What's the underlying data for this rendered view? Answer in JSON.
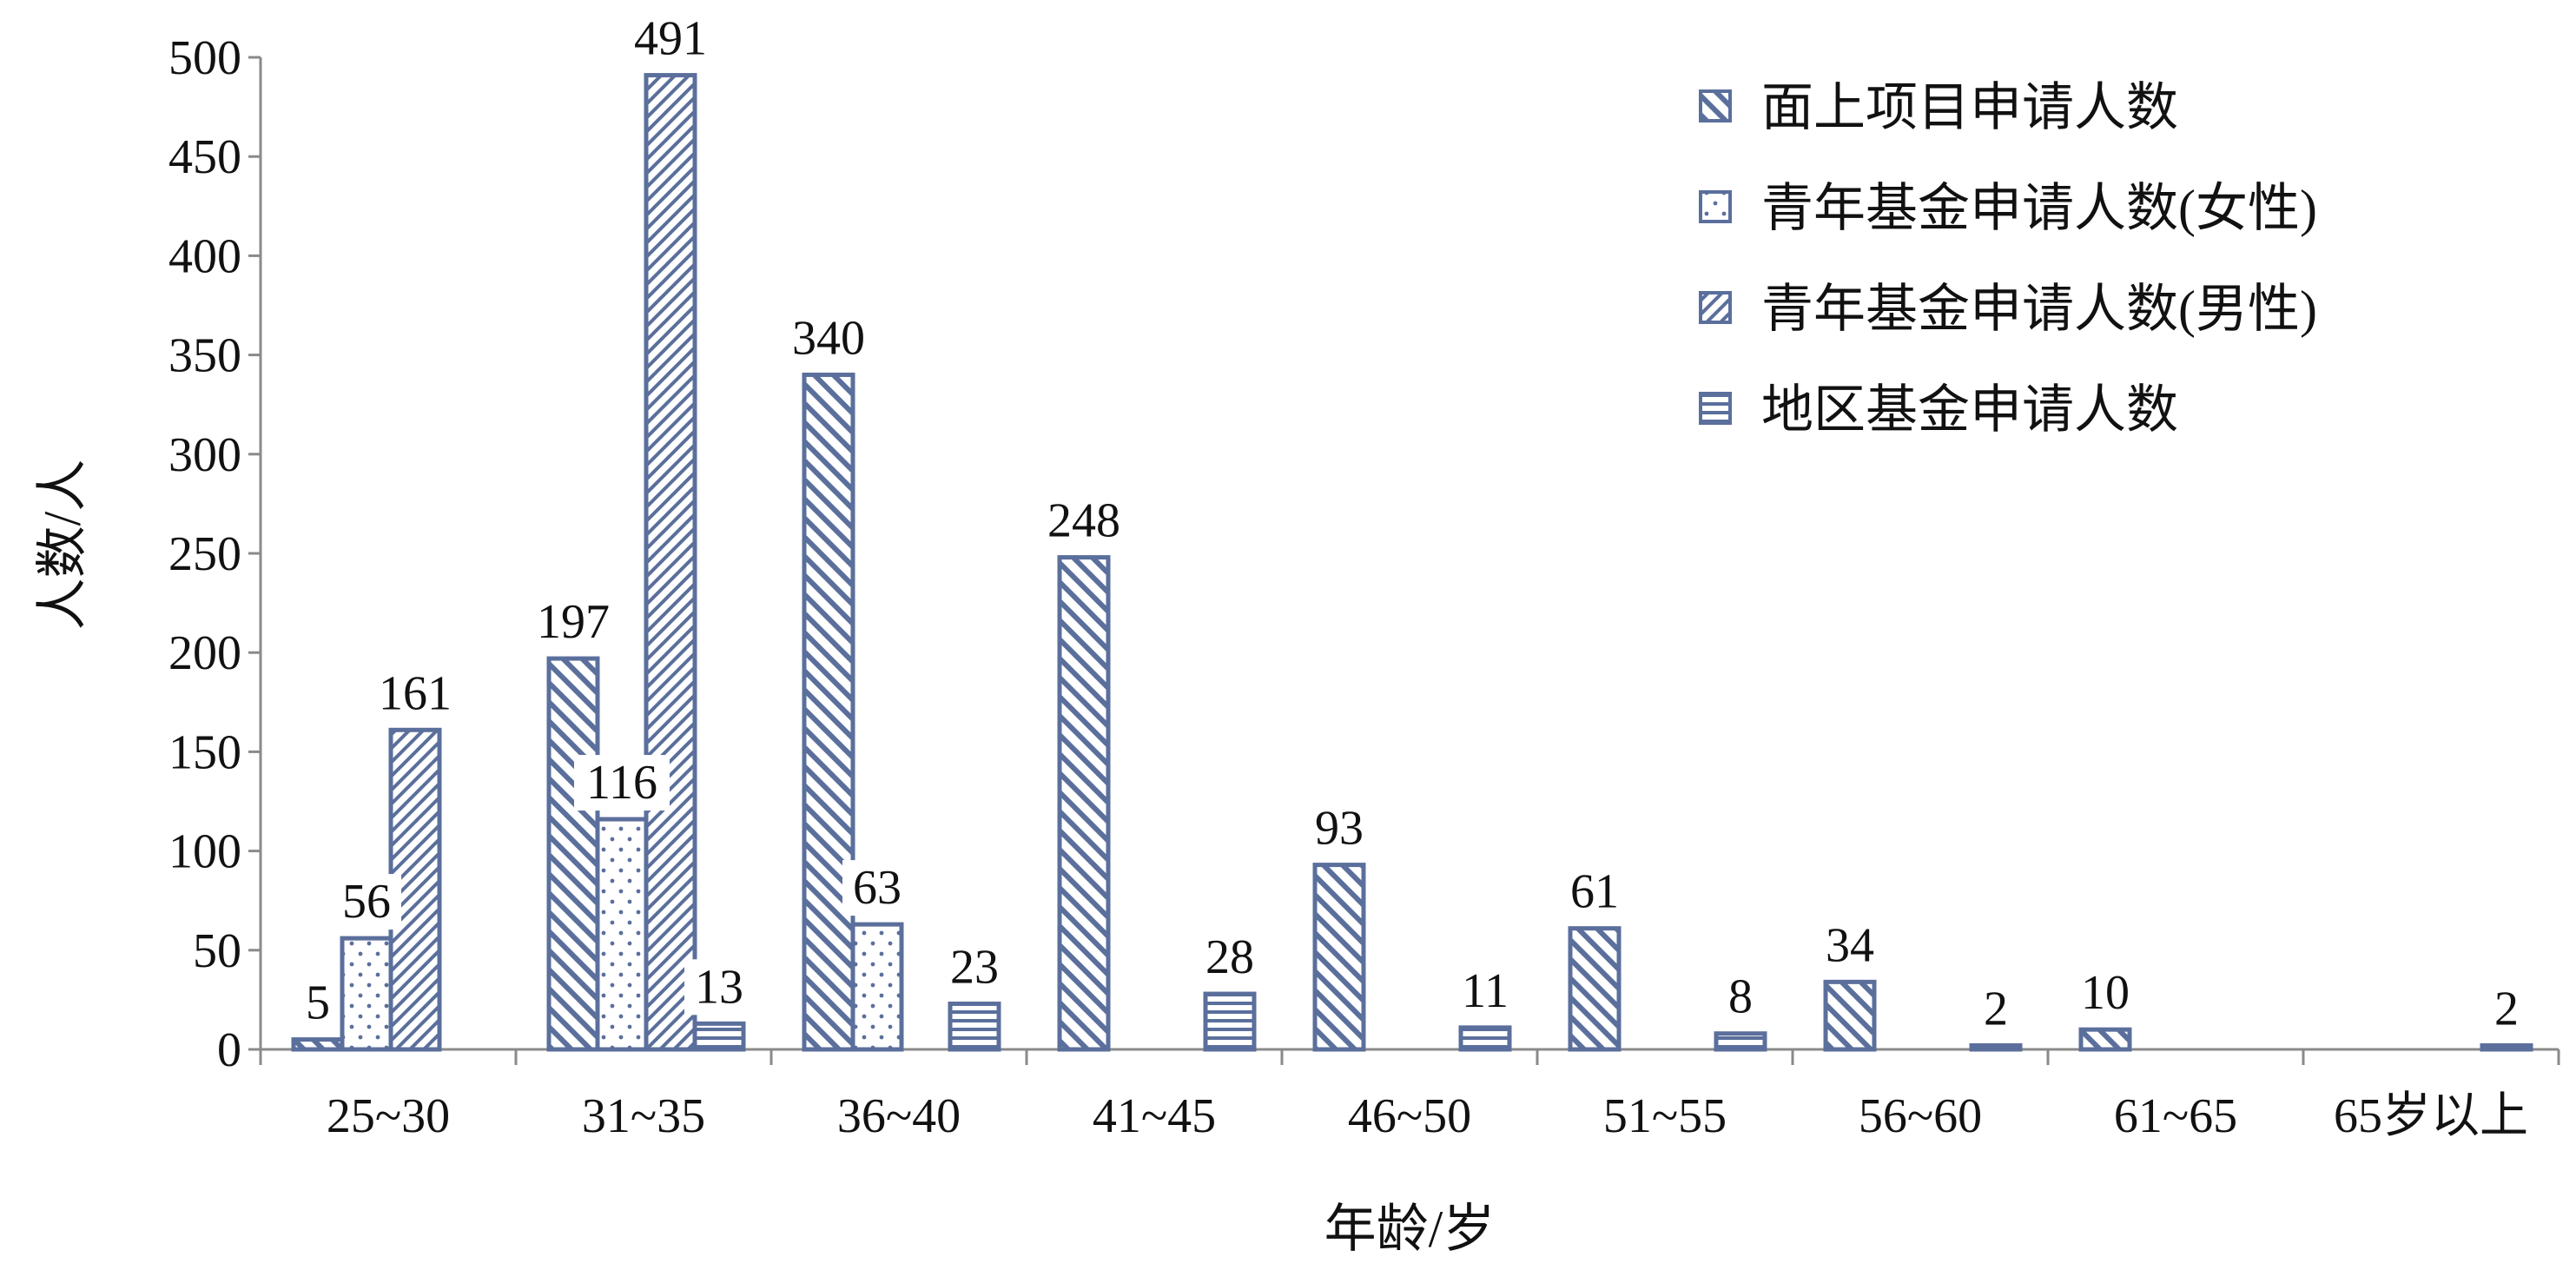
{
  "chart_data": {
    "type": "bar",
    "title": "",
    "xlabel": "年龄/岁",
    "ylabel": "人数/人",
    "ylim": [
      0,
      500
    ],
    "yticks": [
      0,
      50,
      100,
      150,
      200,
      250,
      300,
      350,
      400,
      450,
      500
    ],
    "grid": false,
    "legend_position": "top-right",
    "categories": [
      "25~30",
      "31~35",
      "36~40",
      "41~45",
      "46~50",
      "51~55",
      "56~60",
      "61~65",
      "65岁以上"
    ],
    "series": [
      {
        "name": "面上项目申请人数",
        "pattern": "diagonal-backslash",
        "color": "#5b6f9c",
        "values": [
          5,
          197,
          340,
          248,
          93,
          61,
          34,
          10,
          null
        ]
      },
      {
        "name": "青年基金申请人数(女性)",
        "pattern": "dots",
        "color": "#5b6f9c",
        "values": [
          56,
          116,
          63,
          null,
          null,
          null,
          null,
          null,
          null
        ]
      },
      {
        "name": "青年基金申请人数(男性)",
        "pattern": "diagonal-slash",
        "color": "#5b6f9c",
        "values": [
          161,
          491,
          null,
          null,
          null,
          null,
          null,
          null,
          null
        ]
      },
      {
        "name": "地区基金申请人数",
        "pattern": "horizontal-lines",
        "color": "#5b6f9c",
        "values": [
          null,
          13,
          23,
          28,
          11,
          8,
          2,
          null,
          2
        ]
      }
    ]
  }
}
